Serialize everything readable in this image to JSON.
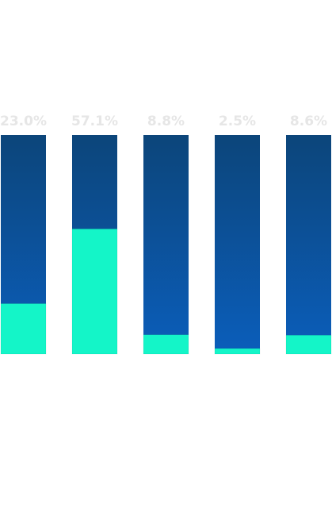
{
  "chart_data": {
    "type": "bar",
    "stacked": true,
    "categories": [
      "",
      "",
      "",
      "",
      ""
    ],
    "values": [
      23.0,
      57.1,
      8.8,
      2.5,
      8.6
    ],
    "value_labels": [
      "23.0%",
      "57.1%",
      "8.8%",
      "2.5%",
      "8.6%"
    ],
    "ylim": [
      0,
      100
    ],
    "title": "",
    "xlabel": "",
    "ylabel": "",
    "grid": false,
    "legend": "none"
  },
  "colors": {
    "fill": "#14f5c8",
    "track_top": "#0c457a",
    "track_bottom": "#0b5ebb",
    "label": "#e6e6e6"
  }
}
